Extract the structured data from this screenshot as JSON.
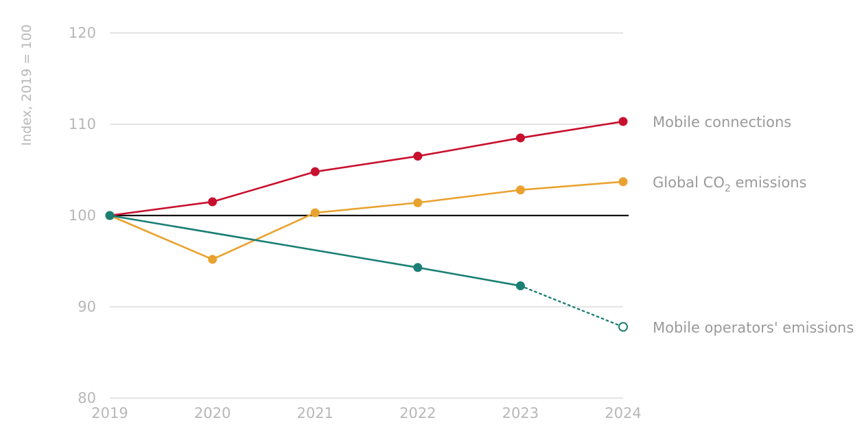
{
  "chart_data": {
    "type": "line",
    "ylabel": "Index, 2019 = 100",
    "xlabel": "",
    "ylim": [
      80,
      120
    ],
    "yticks": [
      80,
      90,
      100,
      110,
      120
    ],
    "x": [
      "2019",
      "2020",
      "2021",
      "2022",
      "2023",
      "2024"
    ],
    "baseline": 100,
    "grid": true,
    "legend": "inline-right",
    "series": [
      {
        "name": "Mobile connections",
        "color": "#c8102e",
        "values": [
          100,
          101.5,
          104.8,
          106.5,
          108.5,
          110.3
        ]
      },
      {
        "name": "Global CO2 emissions",
        "name_parts": [
          "Global CO",
          "2",
          " emissions"
        ],
        "color": "#e9a22f",
        "values": [
          100,
          95.2,
          100.3,
          101.4,
          102.8,
          103.7
        ]
      },
      {
        "name": "Mobile operators' emissions",
        "color": "#1a7f74",
        "values": [
          100,
          null,
          null,
          94.3,
          92.3,
          87.8
        ],
        "projected_from_index": 4,
        "projected_points": [
          5
        ]
      }
    ]
  }
}
